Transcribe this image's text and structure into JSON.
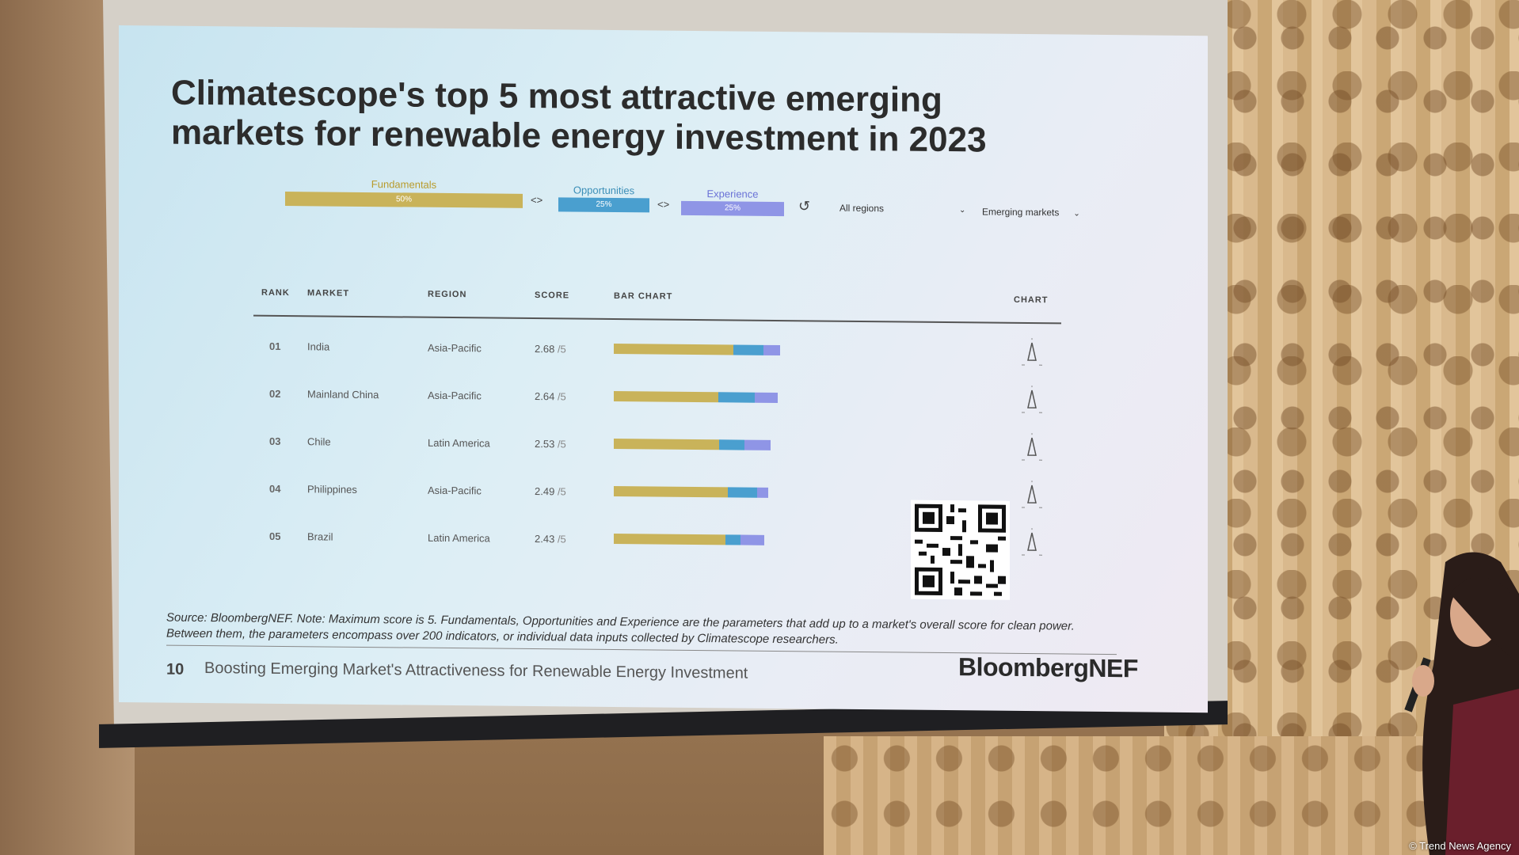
{
  "slide": {
    "title": "Climatescope's top 5 most attractive emerging\nmarkets for renewable energy investment in 2023",
    "controls": {
      "fundamentals_label": "Fundamentals",
      "fundamentals_pct": "50%",
      "opportunities_label": "Opportunities",
      "opportunities_pct": "25%",
      "experience_label": "Experience",
      "experience_pct": "25%",
      "swap_icon": "<>",
      "reset_icon": "↺",
      "region_filter": "All regions",
      "market_filter": "Emerging markets"
    },
    "table": {
      "headers": {
        "rank": "RANK",
        "market": "MARKET",
        "region": "REGION",
        "score": "SCORE",
        "bar_chart": "BAR CHART",
        "chart": "CHART"
      },
      "rows": [
        {
          "rank": "01",
          "market": "India",
          "region": "Asia-Pacific",
          "score": "2.68",
          "max": "/5",
          "fundamentals": 0.72,
          "opportunities": 0.18,
          "experience": 0.1
        },
        {
          "rank": "02",
          "market": "Mainland China",
          "region": "Asia-Pacific",
          "score": "2.64",
          "max": "/5",
          "fundamentals": 0.64,
          "opportunities": 0.22,
          "experience": 0.14
        },
        {
          "rank": "03",
          "market": "Chile",
          "region": "Latin America",
          "score": "2.53",
          "max": "/5",
          "fundamentals": 0.67,
          "opportunities": 0.16,
          "experience": 0.17
        },
        {
          "rank": "04",
          "market": "Philippines",
          "region": "Asia-Pacific",
          "score": "2.49",
          "max": "/5",
          "fundamentals": 0.74,
          "opportunities": 0.19,
          "experience": 0.07
        },
        {
          "rank": "05",
          "market": "Brazil",
          "region": "Latin America",
          "score": "2.43",
          "max": "/5",
          "fundamentals": 0.74,
          "opportunities": 0.1,
          "experience": 0.16
        }
      ]
    },
    "source_note": "Source: BloombergNEF. Note: Maximum score is 5. Fundamentals, Opportunities and Experience are the parameters that add up to a market's overall score for clean power. Between them, the parameters encompass over 200 indicators, or individual data inputs collected by Climatescope researchers.",
    "page_number": "10",
    "footer_title": "Boosting Emerging Market's Attractiveness for Renewable Energy Investment",
    "brand": "BloombergNEF",
    "colors": {
      "fundamentals": "#c9b35a",
      "opportunities": "#4a9fcf",
      "experience": "#8f95e6"
    }
  },
  "watermark": "© Trend News Agency"
}
